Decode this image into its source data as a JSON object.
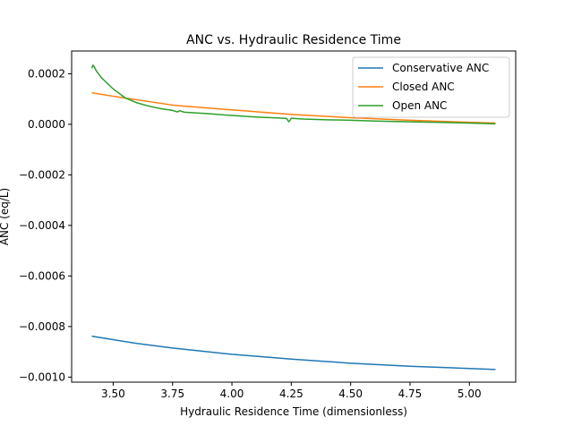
{
  "chart_data": {
    "type": "line",
    "title": "ANC vs. Hydraulic Residence Time",
    "xlabel": "Hydraulic Residence Time (dimensionless)",
    "ylabel": "ANC (eq/L)",
    "xlim": [
      3.325,
      5.195
    ],
    "ylim": [
      -0.00102,
      0.00029
    ],
    "xticks": [
      3.5,
      3.75,
      4.0,
      4.25,
      4.5,
      4.75,
      5.0
    ],
    "xtick_labels": [
      "3.50",
      "3.75",
      "4.00",
      "4.25",
      "4.50",
      "4.75",
      "5.00"
    ],
    "yticks": [
      0.0002,
      0.0,
      -0.0002,
      -0.0004,
      -0.0006,
      -0.0008,
      -0.001
    ],
    "ytick_labels": [
      "0.0002",
      "0.0000",
      "−0.0002",
      "−0.0004",
      "−0.0006",
      "−0.0008",
      "−0.0010"
    ],
    "grid": false,
    "legend_position": "top-right",
    "series": [
      {
        "name": "Conservative ANC",
        "color": "#1f77b4",
        "x": [
          3.41,
          3.5,
          3.6,
          3.75,
          4.0,
          4.25,
          4.5,
          4.75,
          5.0,
          5.11
        ],
        "y": [
          -0.000838,
          -0.000852,
          -0.000867,
          -0.000885,
          -0.00091,
          -0.000929,
          -0.000945,
          -0.000957,
          -0.000966,
          -0.00097
        ]
      },
      {
        "name": "Closed ANC",
        "color": "#ff7f0e",
        "x": [
          3.41,
          3.5,
          3.75,
          4.0,
          4.25,
          4.5,
          4.75,
          5.0,
          5.11
        ],
        "y": [
          0.000125,
          0.000111,
          7.6e-05,
          5.7e-05,
          3.9e-05,
          2.6e-05,
          1.6e-05,
          8e-06,
          5e-06
        ]
      },
      {
        "name": "Open ANC",
        "color": "#2ca02c",
        "x": [
          3.41,
          3.415,
          3.42,
          3.43,
          3.45,
          3.5,
          3.55,
          3.6,
          3.65,
          3.7,
          3.75,
          3.77,
          3.78,
          3.8,
          3.9,
          4.0,
          4.1,
          4.2,
          4.23,
          4.24,
          4.25,
          4.3,
          4.4,
          4.5,
          4.6,
          4.75,
          4.9,
          5.0,
          5.11
        ],
        "y": [
          0.000222,
          0.000234,
          0.000228,
          0.00021,
          0.000185,
          0.00014,
          0.000105,
          8.5e-05,
          7.2e-05,
          6.2e-05,
          5.5e-05,
          4.9e-05,
          5.4e-05,
          4.8e-05,
          4.2e-05,
          3.5e-05,
          2.9e-05,
          2.5e-05,
          2.3e-05,
          1e-05,
          2.4e-05,
          2.1e-05,
          1.8e-05,
          1.6e-05,
          1.3e-05,
          1e-05,
          7e-06,
          5e-06,
          2e-06
        ]
      }
    ]
  }
}
